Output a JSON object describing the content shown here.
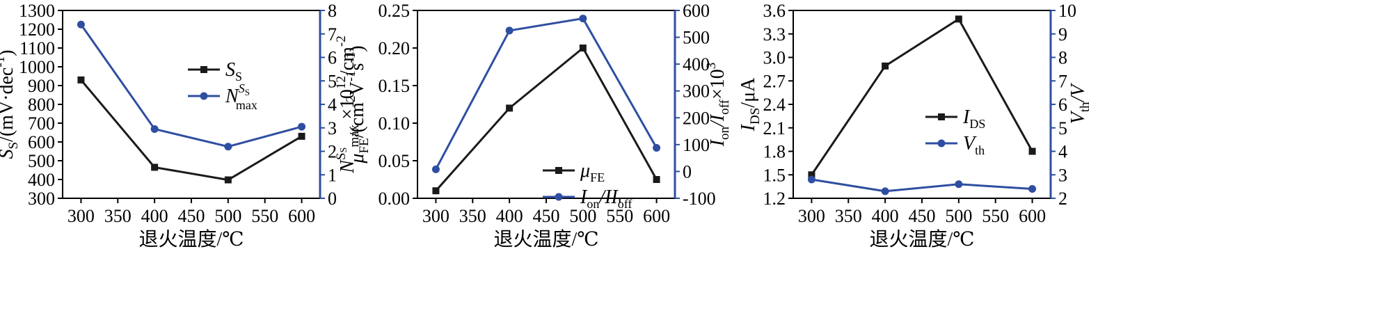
{
  "colors": {
    "black": "#1a1a1a",
    "blue": "#2f4ea1"
  },
  "chart_data": [
    {
      "type": "line",
      "x": [
        300,
        400,
        500,
        600
      ],
      "xticks": [
        300,
        350,
        400,
        450,
        500,
        550,
        600
      ],
      "xlim": [
        275,
        625
      ],
      "xlabel": "退火温度/℃",
      "ylim_left": [
        300,
        1300
      ],
      "yticks_left": [
        300,
        400,
        500,
        600,
        700,
        800,
        900,
        1000,
        1100,
        1200,
        1300
      ],
      "ylim_right": [
        0,
        8
      ],
      "yticks_right": [
        0,
        1,
        2,
        3,
        4,
        5,
        6,
        7,
        8
      ],
      "ylabel_left": {
        "main": "S",
        "sub": "S",
        "rest": "/(mV·dec",
        "sup": "-1",
        "end": ")"
      },
      "ylabel_right": {
        "main": "N",
        "sup": "S",
        "supsub": "S",
        "sub": "max",
        "rest": " ×10",
        "sup2": "12",
        "end": "/cm",
        "sup3": "-2"
      },
      "legend_position": "center",
      "series": [
        {
          "name": "S",
          "name_sub": "S",
          "axis": "left",
          "color": "#1a1a1a",
          "marker": "square",
          "values": [
            930,
            465,
            398,
            630
          ]
        },
        {
          "name": "N",
          "name_sup": "S",
          "name_supsub": "S",
          "name_sub": "max",
          "axis": "right",
          "color": "#2f4ea1",
          "marker": "circle",
          "values": [
            7.4,
            2.95,
            2.2,
            3.05
          ]
        }
      ]
    },
    {
      "type": "line",
      "x": [
        300,
        400,
        500,
        600
      ],
      "xticks": [
        300,
        350,
        400,
        450,
        500,
        550,
        600
      ],
      "xlim": [
        275,
        625
      ],
      "xlabel": "退火温度/℃",
      "ylim_left": [
        0.0,
        0.25
      ],
      "yticks_left": [
        "0.00",
        "0.05",
        "0.10",
        "0.15",
        "0.20",
        "0.25"
      ],
      "ylim_right": [
        -100,
        600
      ],
      "yticks_right": [
        -100,
        0,
        100,
        200,
        300,
        400,
        500,
        600
      ],
      "ylabel_left": {
        "main": "μ",
        "sub": "FE",
        "rest": "/(cm",
        "sup": "2",
        "rest2": "V",
        "sup2": "-1",
        "rest3": "s",
        "sup3": "-1",
        "end": ")"
      },
      "ylabel_right": {
        "main": "I",
        "sub": "on",
        "rest": "/I",
        "sub2": "off",
        "end": "×10",
        "sup": "3"
      },
      "legend_position": "bottom-right",
      "series": [
        {
          "name": "μ",
          "name_sub": "FE",
          "axis": "left",
          "color": "#1a1a1a",
          "marker": "square",
          "values": [
            0.01,
            0.12,
            0.2,
            0.025
          ]
        },
        {
          "name": "I",
          "name_sub": "on",
          "name_rest": "/II",
          "name_sub2": "off",
          "axis": "right",
          "color": "#2f4ea1",
          "marker": "circle",
          "values": [
            8,
            525,
            570,
            88
          ]
        }
      ]
    },
    {
      "type": "line",
      "x": [
        300,
        400,
        500,
        600
      ],
      "xticks": [
        300,
        350,
        400,
        450,
        500,
        550,
        600
      ],
      "xlim": [
        275,
        625
      ],
      "xlabel": "退火温度/℃",
      "ylim_left": [
        1.2,
        3.6
      ],
      "yticks_left": [
        "1.2",
        "1.5",
        "1.8",
        "2.1",
        "2.4",
        "2.7",
        "3.0",
        "3.3",
        "3.6"
      ],
      "ylim_right": [
        2,
        10
      ],
      "yticks_right": [
        2,
        3,
        4,
        5,
        6,
        7,
        8,
        9,
        10
      ],
      "ylabel_left": {
        "main": "I",
        "sub": "DS",
        "rest": "/μA"
      },
      "ylabel_right": {
        "main": "V",
        "sub": "th",
        "rest": "/V"
      },
      "legend_position": "center-left",
      "series": [
        {
          "name": "I",
          "name_sub": "DS",
          "axis": "left",
          "color": "#1a1a1a",
          "marker": "square",
          "values": [
            1.5,
            2.89,
            3.49,
            1.8
          ]
        },
        {
          "name": "V",
          "name_sub": "th",
          "axis": "right",
          "color": "#2f4ea1",
          "marker": "circle",
          "values": [
            2.8,
            2.3,
            2.6,
            2.4
          ]
        }
      ]
    }
  ]
}
